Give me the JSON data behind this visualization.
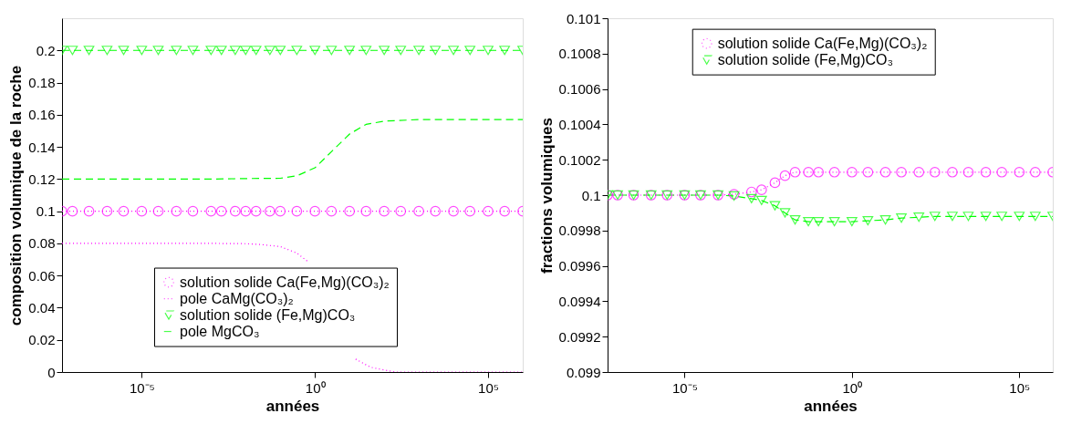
{
  "chart_data": [
    {
      "type": "line",
      "xlabel": "années",
      "ylabel": "composition volumique de la roche",
      "log": "x",
      "legend": "bottom",
      "xlim": [
        5e-08,
        1000000.0
      ],
      "xticks": [
        {
          "value": 1e-05,
          "label": "10⁻⁵"
        },
        {
          "value": 1,
          "label": "10⁰"
        },
        {
          "value": 100000.0,
          "label": "10⁵"
        }
      ],
      "ylim": [
        0,
        0.22
      ],
      "yticks": [
        0,
        0.02,
        0.04,
        0.06,
        0.08,
        0.1,
        0.12,
        0.14,
        0.16,
        0.18,
        0.2
      ],
      "series": [
        {
          "name": "solution solide Ca(Fe,Mg)(CO₃)₂",
          "color": "#ff00ff",
          "line_style": "dotted",
          "marker": "circle",
          "x": [
            5e-08,
            1e-07,
            3e-07,
            1e-06,
            3e-06,
            1e-05,
            3e-05,
            0.0001,
            0.0003,
            0.001,
            0.002,
            0.005,
            0.01,
            0.02,
            0.05,
            0.1,
            0.3,
            1,
            3,
            10,
            30,
            100,
            300,
            1000,
            3000,
            10000,
            30000,
            100000,
            300000,
            1000000
          ],
          "values": [
            0.1,
            0.1,
            0.1,
            0.1,
            0.1,
            0.1,
            0.1,
            0.1,
            0.1,
            0.1,
            0.1,
            0.1,
            0.1,
            0.1,
            0.1,
            0.1,
            0.1,
            0.1,
            0.1,
            0.1,
            0.1,
            0.1,
            0.1,
            0.1,
            0.1,
            0.1,
            0.1,
            0.1,
            0.1,
            0.1
          ]
        },
        {
          "name": "pole CaMg(CO₃)₂",
          "color": "#ff00ff",
          "line_style": "dotted",
          "marker": "none",
          "x": [
            5e-08,
            0.001,
            0.01,
            0.03,
            0.1,
            0.3,
            0.6,
            1,
            15,
            40,
            200,
            1000000
          ],
          "values": [
            0.08,
            0.08,
            0.0798,
            0.0792,
            0.078,
            0.074,
            0.069,
            null,
            0.008,
            0.003,
            0,
            0
          ]
        },
        {
          "name": "solution solide (Fe,Mg)CO₃",
          "color": "#00ff00",
          "line_style": "dashed",
          "marker": "triangle",
          "x": [
            5e-08,
            1e-07,
            3e-07,
            1e-06,
            3e-06,
            1e-05,
            3e-05,
            0.0001,
            0.0003,
            0.001,
            0.002,
            0.005,
            0.01,
            0.02,
            0.05,
            0.1,
            0.3,
            1,
            3,
            10,
            30,
            100,
            300,
            1000,
            3000,
            10000,
            30000,
            100000,
            300000,
            1000000
          ],
          "values": [
            0.2,
            0.2,
            0.2,
            0.2,
            0.2,
            0.2,
            0.2,
            0.2,
            0.2,
            0.2,
            0.2,
            0.2,
            0.2,
            0.2,
            0.2,
            0.2,
            0.2,
            0.2,
            0.2,
            0.2,
            0.2,
            0.2,
            0.2,
            0.2,
            0.2,
            0.2,
            0.2,
            0.2,
            0.2,
            0.2
          ]
        },
        {
          "name": "pole MgCO₃",
          "color": "#00ff00",
          "line_style": "dashed",
          "marker": "none",
          "x": [
            5e-08,
            0.001,
            0.01,
            0.1,
            0.3,
            1,
            3,
            10,
            30,
            100,
            1000,
            1000000
          ],
          "values": [
            0.12,
            0.12,
            0.1203,
            0.1205,
            0.122,
            0.127,
            0.137,
            0.148,
            0.154,
            0.156,
            0.157,
            0.157
          ]
        }
      ]
    },
    {
      "type": "line",
      "xlabel": "années",
      "ylabel": "fractions volumiques",
      "log": "x",
      "legend": "top",
      "xlim": [
        5e-08,
        1000000.0
      ],
      "xticks": [
        {
          "value": 1e-05,
          "label": "10⁻⁵"
        },
        {
          "value": 1,
          "label": "10⁰"
        },
        {
          "value": 100000.0,
          "label": "10⁵"
        }
      ],
      "ylim": [
        0.099,
        0.101
      ],
      "yticks": [
        0.099,
        0.0992,
        0.0994,
        0.0996,
        0.0998,
        0.1,
        0.1002,
        0.1004,
        0.1006,
        0.1008,
        0.101
      ],
      "series": [
        {
          "name": "solution solide Ca(Fe,Mg)(CO₃)₂",
          "color": "#ff00ff",
          "line_style": "dotted",
          "marker": "circle",
          "x": [
            5e-08,
            1e-07,
            3e-07,
            1e-06,
            3e-06,
            1e-05,
            3e-05,
            0.0001,
            0.0003,
            0.001,
            0.002,
            0.005,
            0.01,
            0.02,
            0.05,
            0.1,
            0.3,
            1,
            3,
            10,
            30,
            100,
            300,
            1000,
            3000,
            10000,
            30000,
            100000,
            300000,
            1000000
          ],
          "values": [
            0.1,
            0.1,
            0.1,
            0.1,
            0.1,
            0.1,
            0.1,
            0.1,
            0.100005,
            0.100018,
            0.10003,
            0.10007,
            0.10011,
            0.10013,
            0.10013,
            0.10013,
            0.10013,
            0.10013,
            0.10013,
            0.10013,
            0.10013,
            0.10013,
            0.10013,
            0.10013,
            0.10013,
            0.10013,
            0.10013,
            0.10013,
            0.10013,
            0.10013
          ]
        },
        {
          "name": "solution solide (Fe,Mg)CO₃",
          "color": "#00ff00",
          "line_style": "dashed",
          "marker": "triangle",
          "x": [
            5e-08,
            1e-07,
            3e-07,
            1e-06,
            3e-06,
            1e-05,
            3e-05,
            0.0001,
            0.0003,
            0.001,
            0.002,
            0.005,
            0.01,
            0.02,
            0.05,
            0.1,
            0.3,
            1,
            3,
            10,
            30,
            100,
            300,
            1000,
            3000,
            10000,
            30000,
            100000,
            300000,
            1000000
          ],
          "values": [
            0.1,
            0.1,
            0.1,
            0.1,
            0.1,
            0.1,
            0.1,
            0.1,
            0.099995,
            0.09998,
            0.09997,
            0.09994,
            0.0999,
            0.09986,
            0.09985,
            0.09985,
            0.09985,
            0.09985,
            0.099855,
            0.09986,
            0.09987,
            0.099875,
            0.09988,
            0.09988,
            0.09988,
            0.09988,
            0.09988,
            0.09988,
            0.09988,
            0.09988
          ]
        }
      ]
    }
  ]
}
